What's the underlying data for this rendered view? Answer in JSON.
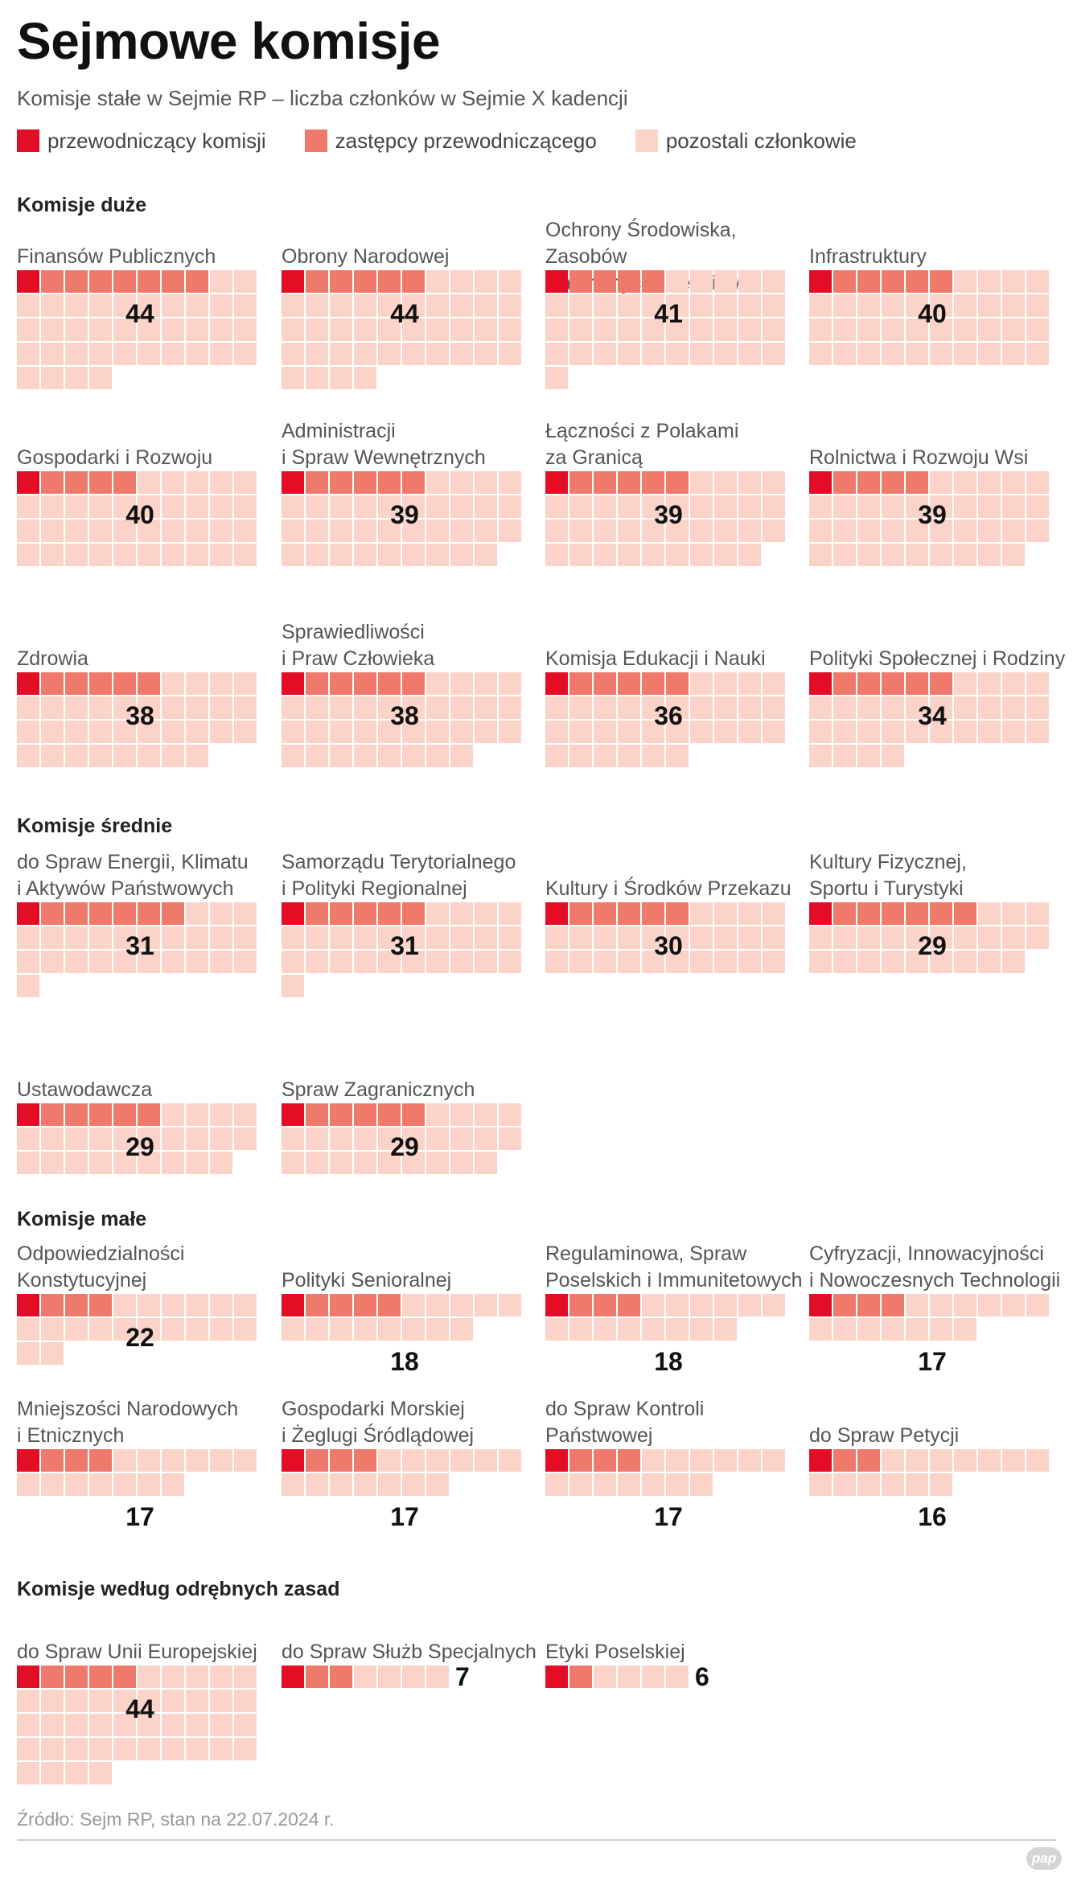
{
  "title": "Sejmowe komisje",
  "subtitle": "Komisje stałe w Sejmie RP – liczba członków w Sejmie X kadencji",
  "legend": [
    {
      "label": "przewodniczący komisji",
      "color": "#e30d26"
    },
    {
      "label": "zastępcy przewodniczącego",
      "color": "#ef7a6c"
    },
    {
      "label": "pozostali członkowie",
      "color": "#fbd3c9"
    }
  ],
  "source": "Źródło: Sejm RP, stan na 22.07.2024 r.",
  "logo": "pap",
  "chart_data": {
    "type": "waffle",
    "unit": "liczba członków",
    "sections": [
      {
        "title": "Komisje duże",
        "committees": [
          {
            "name": "Finansów Publicznych",
            "total": 44,
            "chair": 1,
            "deputies": 7
          },
          {
            "name": "Obrony Narodowej",
            "total": 44,
            "chair": 1,
            "deputies": 5
          },
          {
            "name": "Ochrony Środowiska, Zasobów\nNaturalnych i Leśnictwa",
            "total": 41,
            "chair": 1,
            "deputies": 4
          },
          {
            "name": "Infrastruktury",
            "total": 40,
            "chair": 1,
            "deputies": 5
          },
          {
            "name": "Gospodarki i Rozwoju",
            "total": 40,
            "chair": 1,
            "deputies": 4
          },
          {
            "name": "Administracji\ni Spraw Wewnętrznych",
            "total": 39,
            "chair": 1,
            "deputies": 5
          },
          {
            "name": "Łączności z Polakami\nza Granicą",
            "total": 39,
            "chair": 1,
            "deputies": 5
          },
          {
            "name": "Rolnictwa i Rozwoju Wsi",
            "total": 39,
            "chair": 1,
            "deputies": 4
          },
          {
            "name": "Zdrowia",
            "total": 38,
            "chair": 1,
            "deputies": 5
          },
          {
            "name": "Sprawiedliwości\ni Praw Człowieka",
            "total": 38,
            "chair": 1,
            "deputies": 5
          },
          {
            "name": "Komisja Edukacji i Nauki",
            "total": 36,
            "chair": 1,
            "deputies": 5
          },
          {
            "name": "Polityki Społecznej i Rodziny",
            "total": 34,
            "chair": 1,
            "deputies": 5
          }
        ]
      },
      {
        "title": "Komisje średnie",
        "committees": [
          {
            "name": "do Spraw Energii, Klimatu\ni Aktywów Państwowych",
            "total": 31,
            "chair": 1,
            "deputies": 6
          },
          {
            "name": "Samorządu Terytorialnego\ni Polityki Regionalnej",
            "total": 31,
            "chair": 1,
            "deputies": 5
          },
          {
            "name": "Kultury i Środków Przekazu",
            "total": 30,
            "chair": 1,
            "deputies": 5
          },
          {
            "name": "Kultury Fizycznej,\nSportu i Turystyki",
            "total": 29,
            "chair": 1,
            "deputies": 6
          },
          {
            "name": "Ustawodawcza",
            "total": 29,
            "chair": 1,
            "deputies": 5
          },
          {
            "name": "Spraw Zagranicznych",
            "total": 29,
            "chair": 1,
            "deputies": 5
          }
        ]
      },
      {
        "title": "Komisje małe",
        "committees": [
          {
            "name": "Odpowiedzialności\nKonstytucyjnej",
            "total": 22,
            "chair": 1,
            "deputies": 3
          },
          {
            "name": "Polityki Senioralnej",
            "total": 18,
            "chair": 1,
            "deputies": 4
          },
          {
            "name": "Regulaminowa, Spraw\nPoselskich i Immunitetowych",
            "total": 18,
            "chair": 1,
            "deputies": 3
          },
          {
            "name": "Cyfryzacji, Innowacyjności\ni Nowoczesnych Technologii",
            "total": 17,
            "chair": 1,
            "deputies": 3
          },
          {
            "name": "Mniejszości Narodowych\ni Etnicznych",
            "total": 17,
            "chair": 1,
            "deputies": 3
          },
          {
            "name": "Gospodarki Morskiej\ni Żeglugi Śródlądowej",
            "total": 17,
            "chair": 1,
            "deputies": 3
          },
          {
            "name": "do Spraw Kontroli\nPaństwowej",
            "total": 17,
            "chair": 1,
            "deputies": 3
          },
          {
            "name": "do Spraw Petycji",
            "total": 16,
            "chair": 1,
            "deputies": 2
          }
        ]
      },
      {
        "title": "Komisje według odrębnych zasad",
        "committees": [
          {
            "name": "do Spraw Unii Europejskiej",
            "total": 44,
            "chair": 1,
            "deputies": 4
          },
          {
            "name": "do Spraw Służb Specjalnych",
            "total": 7,
            "chair": 1,
            "deputies": 2
          },
          {
            "name": "Etyki Poselskiej",
            "total": 6,
            "chair": 1,
            "deputies": 1
          }
        ]
      }
    ]
  }
}
